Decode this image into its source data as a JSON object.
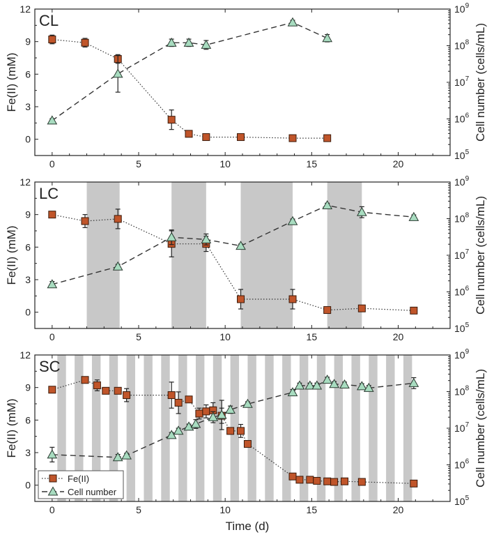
{
  "figure": {
    "xlabel": "Time (d)",
    "ylabel_left": "Fe(II) (mM)",
    "ylabel_right": "Cell number (cells/mL)",
    "legend": {
      "fe": "Fe(II)",
      "cells": "Cell number",
      "placement": "bottom-left of panel SC"
    }
  },
  "colors": {
    "fe_marker": "#c0552a",
    "cell_marker": "#a8dcc0",
    "shade": "#c8c8c8",
    "axis": "#222222"
  },
  "chart_data": [
    {
      "type": "scatter",
      "panel": "CL",
      "xlim": [
        -1,
        23
      ],
      "ylim_left": [
        -1.5,
        12
      ],
      "ylim_right_log10": [
        5,
        9
      ],
      "xticks": [
        0,
        5,
        10,
        15,
        20
      ],
      "yticks_left": [
        0,
        3,
        6,
        9,
        12
      ],
      "yticks_right_exp": [
        5,
        6,
        7,
        8,
        9
      ],
      "dark_periods": [],
      "series": [
        {
          "name": "Fe(II)",
          "axis": "left",
          "line": "dotted",
          "x": [
            0,
            1.9,
            3.8,
            6.9,
            7.9,
            8.9,
            10.9,
            13.9,
            15.9
          ],
          "y": [
            9.2,
            8.9,
            7.4,
            1.8,
            0.5,
            0.2,
            0.2,
            0.1,
            0.1
          ],
          "err": [
            0.4,
            0.4,
            0.4,
            0.9,
            0.2,
            0.1,
            0.1,
            0.1,
            0.1
          ]
        },
        {
          "name": "Cell number",
          "axis": "right",
          "scale": "log",
          "line": "dashed",
          "x": [
            0,
            3.8,
            6.9,
            7.9,
            8.9,
            13.9,
            15.9
          ],
          "y": [
            900000.0,
            17000000.0,
            120000000.0,
            120000000.0,
            105000000.0,
            430000000.0,
            160000000.0
          ],
          "err_exp": [
            0.05,
            0.5,
            0.1,
            0.1,
            0.12,
            0.06,
            0.1
          ]
        }
      ]
    },
    {
      "type": "scatter",
      "panel": "LC",
      "xlim": [
        -1,
        23
      ],
      "ylim_left": [
        -1.5,
        12
      ],
      "ylim_right_log10": [
        5,
        9
      ],
      "xticks": [
        0,
        5,
        10,
        15,
        20
      ],
      "yticks_left": [
        0,
        3,
        6,
        9,
        12
      ],
      "yticks_right_exp": [
        5,
        6,
        7,
        8,
        9
      ],
      "dark_periods": [
        [
          2,
          3.9
        ],
        [
          6.9,
          8.9
        ],
        [
          10.9,
          13.9
        ],
        [
          15.9,
          17.9
        ]
      ],
      "series": [
        {
          "name": "Fe(II)",
          "axis": "left",
          "line": "dotted",
          "x": [
            0,
            1.9,
            3.8,
            6.9,
            8.9,
            10.9,
            13.9,
            15.9,
            17.9,
            20.9
          ],
          "y": [
            9.0,
            8.4,
            8.6,
            6.3,
            6.3,
            1.2,
            1.2,
            0.2,
            0.35,
            0.15
          ],
          "err": [
            0.2,
            0.6,
            0.9,
            1.2,
            0.7,
            0.9,
            0.9,
            0.1,
            0.1,
            0.1
          ]
        },
        {
          "name": "Cell number",
          "axis": "right",
          "scale": "log",
          "line": "dashed",
          "x": [
            0,
            3.8,
            6.9,
            8.9,
            10.9,
            13.9,
            15.9,
            17.9,
            20.9
          ],
          "y": [
            1600000.0,
            4900000.0,
            31000000.0,
            27000000.0,
            18000000.0,
            85000000.0,
            230000000.0,
            150000000.0,
            110000000.0
          ],
          "err_exp": [
            0.08,
            0.06,
            0.2,
            0.15,
            0.05,
            0.06,
            0.06,
            0.15,
            0.06
          ]
        }
      ]
    },
    {
      "type": "scatter",
      "panel": "SC",
      "xlim": [
        -1,
        23
      ],
      "ylim_left": [
        -1.5,
        12
      ],
      "ylim_right_log10": [
        5,
        9
      ],
      "xticks": [
        0,
        5,
        10,
        15,
        20
      ],
      "yticks_left": [
        0,
        3,
        6,
        9,
        12
      ],
      "yticks_right_exp": [
        5,
        6,
        7,
        8,
        9
      ],
      "dark_periods": [
        [
          0.3,
          0.8
        ],
        [
          1.3,
          1.8
        ],
        [
          2.3,
          2.8
        ],
        [
          3.3,
          3.8
        ],
        [
          4.3,
          4.8
        ],
        [
          5.3,
          5.8
        ],
        [
          6.3,
          6.8
        ],
        [
          7.3,
          7.8
        ],
        [
          8.3,
          8.8
        ],
        [
          9.3,
          9.8
        ],
        [
          10.3,
          10.8
        ],
        [
          11.3,
          11.8
        ],
        [
          12.3,
          12.8
        ],
        [
          13.3,
          13.8
        ],
        [
          14.3,
          14.8
        ],
        [
          15.3,
          15.8
        ],
        [
          16.3,
          16.8
        ],
        [
          17.3,
          17.8
        ],
        [
          18.3,
          18.8
        ],
        [
          19.3,
          19.8
        ],
        [
          20.3,
          20.8
        ]
      ],
      "series": [
        {
          "name": "Fe(II)",
          "axis": "left",
          "line": "dotted",
          "x": [
            0,
            1.9,
            2.6,
            3.1,
            3.8,
            4.3,
            6.9,
            7.3,
            7.9,
            8.5,
            8.9,
            9.3,
            9.8,
            10.3,
            10.9,
            11.3,
            13.9,
            14.3,
            14.9,
            15.3,
            15.9,
            16.3,
            16.9,
            17.9,
            20.9
          ],
          "y": [
            8.8,
            9.7,
            9.2,
            8.7,
            8.7,
            8.3,
            8.3,
            7.6,
            7.9,
            6.6,
            6.8,
            6.9,
            6.4,
            5.0,
            5.0,
            3.8,
            0.8,
            0.5,
            0.5,
            0.4,
            0.35,
            0.3,
            0.35,
            0.3,
            0.15
          ],
          "err": [
            0.1,
            0.1,
            0.5,
            0.2,
            0.2,
            0.6,
            1.2,
            1.0,
            0.1,
            0.5,
            0.6,
            0.7,
            0.7,
            0.3,
            0.6,
            0.3,
            0.1,
            0.1,
            0.1,
            0.1,
            0.1,
            0.1,
            0.1,
            0.1,
            0.1
          ]
        },
        {
          "name": "Cell number",
          "axis": "right",
          "scale": "log",
          "line": "dashed",
          "x": [
            0,
            3.8,
            4.3,
            6.9,
            7.3,
            7.9,
            8.3,
            9.3,
            9.8,
            10.3,
            11.3,
            13.9,
            14.3,
            14.9,
            15.3,
            15.9,
            16.3,
            16.9,
            17.9,
            18.3,
            20.9
          ],
          "y": [
            1900000.0,
            1600000.0,
            1800000.0,
            6500000.0,
            8500000.0,
            11000000.0,
            13000000.0,
            20000000.0,
            23000000.0,
            32000000.0,
            46000000.0,
            95000000.0,
            145000000.0,
            145000000.0,
            145000000.0,
            210000000.0,
            160000000.0,
            155000000.0,
            140000000.0,
            125000000.0,
            170000000.0
          ],
          "err_exp": [
            0.2,
            0.08,
            0.06,
            0.07,
            0.07,
            0.07,
            0.12,
            0.15,
            0.4,
            0.1,
            0.06,
            0.08,
            0.07,
            0.07,
            0.07,
            0.07,
            0.07,
            0.07,
            0.07,
            0.07,
            0.15
          ]
        }
      ]
    }
  ]
}
